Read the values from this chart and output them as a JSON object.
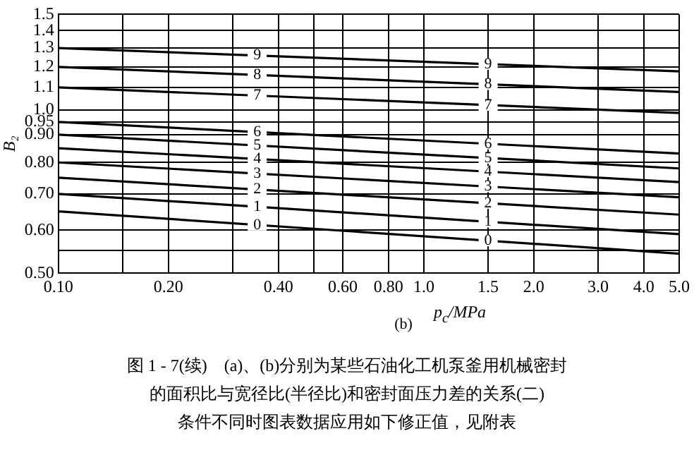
{
  "chart_data": {
    "type": "line",
    "xlabel": "p$_{c}$/MPa",
    "ylabel": "B₂",
    "log": "xy",
    "grid": true,
    "legend": false,
    "marker": "none",
    "line_style": "solid",
    "xlim": [
      0.1,
      5
    ],
    "ylim": [
      0.5,
      1.5
    ],
    "xticks": [
      {
        "value": 0.1,
        "label": "0.10"
      },
      {
        "value": 0.15,
        "label": null
      },
      {
        "value": 0.2,
        "label": "0.20"
      },
      {
        "value": 0.3,
        "label": null
      },
      {
        "value": 0.4,
        "label": "0.40"
      },
      {
        "value": 0.5,
        "label": null
      },
      {
        "value": 0.6,
        "label": "0.60"
      },
      {
        "value": 0.8,
        "label": "0.80"
      },
      {
        "value": 1,
        "label": "1.0"
      },
      {
        "value": 1.5,
        "label": "1.5"
      },
      {
        "value": 2,
        "label": "2.0"
      },
      {
        "value": 3,
        "label": "3.0"
      },
      {
        "value": 4,
        "label": "4.0"
      },
      {
        "value": 5,
        "label": "5.0"
      }
    ],
    "yticks": [
      {
        "value": 0.5,
        "label": "0.50"
      },
      {
        "value": 0.55,
        "label": null
      },
      {
        "value": 0.6,
        "label": "0.60"
      },
      {
        "value": 0.7,
        "label": "0.70"
      },
      {
        "value": 0.8,
        "label": "0.80"
      },
      {
        "value": 0.9,
        "label": "0.90"
      },
      0.95,
      {
        "value": 1,
        "label": "1.0"
      },
      1.1,
      1.2,
      1.3,
      1.4,
      1.5
    ],
    "x": [
      0.1,
      5
    ],
    "series": [
      {
        "name": "0",
        "color": "#000000",
        "values": [
          0.65,
          0.543
        ]
      },
      {
        "name": "1",
        "color": "#000000",
        "values": [
          0.7,
          0.59
        ]
      },
      {
        "name": "2",
        "color": "#000000",
        "values": [
          0.75,
          0.641
        ]
      },
      {
        "name": "3",
        "color": "#000000",
        "values": [
          0.8,
          0.69
        ]
      },
      {
        "name": "4",
        "color": "#000000",
        "values": [
          0.85,
          0.736
        ]
      },
      {
        "name": "5",
        "color": "#000000",
        "values": [
          0.9,
          0.78
        ]
      },
      {
        "name": "6",
        "color": "#000000",
        "values": [
          0.95,
          0.831
        ]
      },
      {
        "name": "7",
        "color": "#000000",
        "values": [
          1.1,
          0.987
        ]
      },
      {
        "name": "8",
        "color": "#000000",
        "values": [
          1.2,
          1.079
        ]
      },
      {
        "name": "9",
        "color": "#000000",
        "values": [
          1.3,
          1.178
        ]
      }
    ],
    "annotations": [
      "(b)",
      "图 1 - 7(续)　(a)、(b)分别为某些石油化工机泵釜用机械密封",
      "的面积比与宽径比(半径比)和密封面压力差的关系(二)",
      "条件不同时图表数据应用如下修正值，见附表"
    ]
  }
}
